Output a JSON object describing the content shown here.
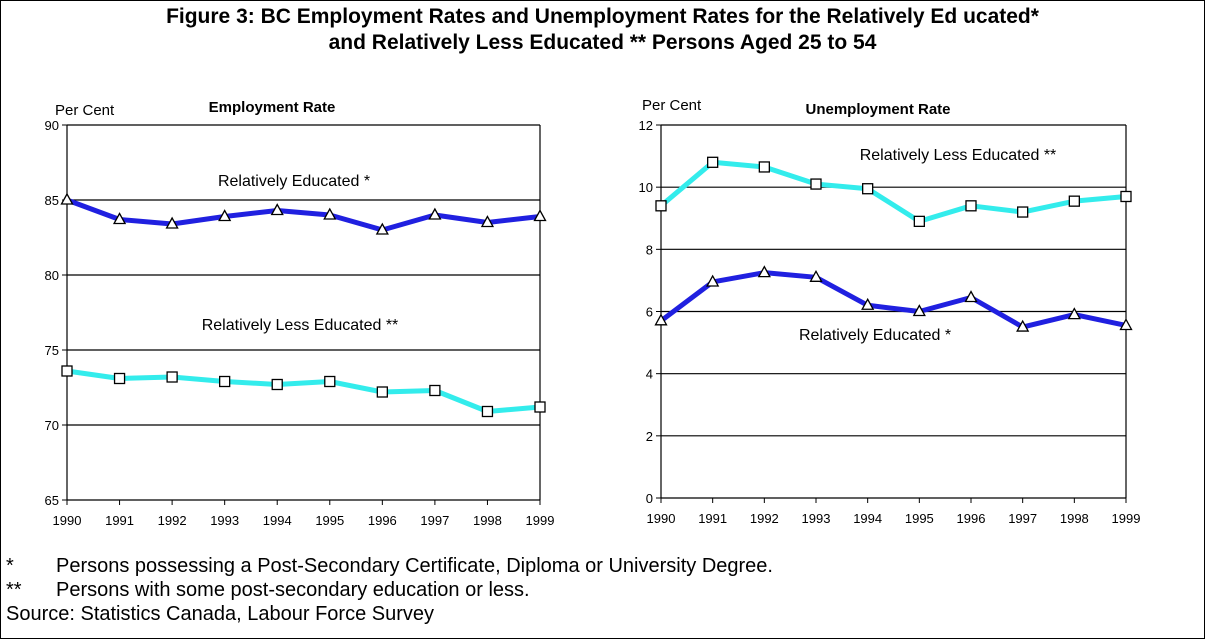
{
  "title_line1": "Figure 3: BC Employment Rates and Unemployment Rates for the Relatively Ed ucated*",
  "title_line2": "and Relatively Less Educated ** Persons Aged 25 to 54",
  "chart_data": [
    {
      "type": "line",
      "title": "Employment Rate",
      "ylabel": "Per Cent",
      "xlabel": "",
      "x": [
        "1990",
        "1991",
        "1992",
        "1993",
        "1994",
        "1995",
        "1996",
        "1997",
        "1998",
        "1999"
      ],
      "ylim": [
        65,
        90
      ],
      "yticks": [
        65,
        70,
        75,
        80,
        85,
        90
      ],
      "grid": "horizontal",
      "series": [
        {
          "name": "Relatively Educated *",
          "values": [
            85.0,
            83.7,
            83.4,
            83.9,
            84.3,
            84.0,
            83.0,
            84.0,
            83.5,
            83.9
          ],
          "color": "#2020e0",
          "marker": "triangle"
        },
        {
          "name": "Relatively Less Educated **",
          "values": [
            73.6,
            73.1,
            73.2,
            72.9,
            72.7,
            72.9,
            72.2,
            72.3,
            70.9,
            71.2
          ],
          "color": "#33ecec",
          "marker": "square"
        }
      ],
      "annotations": [
        "Relatively Educated *",
        "Relatively Less Educated **"
      ]
    },
    {
      "type": "line",
      "title": "Unemployment Rate",
      "ylabel": "Per Cent",
      "xlabel": "",
      "x": [
        "1990",
        "1991",
        "1992",
        "1993",
        "1994",
        "1995",
        "1996",
        "1997",
        "1998",
        "1999"
      ],
      "ylim": [
        0,
        12
      ],
      "yticks": [
        0,
        2,
        4,
        6,
        8,
        10,
        12
      ],
      "grid": "horizontal",
      "series": [
        {
          "name": "Relatively Less Educated **",
          "values": [
            9.4,
            10.8,
            10.65,
            10.1,
            9.95,
            8.9,
            9.4,
            9.2,
            9.55,
            9.7
          ],
          "color": "#33ecec",
          "marker": "square"
        },
        {
          "name": "Relatively Educated *",
          "values": [
            5.7,
            6.95,
            7.25,
            7.1,
            6.2,
            6.0,
            6.45,
            5.5,
            5.9,
            5.55
          ],
          "color": "#2020e0",
          "marker": "triangle"
        }
      ],
      "annotations": [
        "Relatively Less Educated **",
        "Relatively Educated *"
      ]
    }
  ],
  "footnotes": [
    {
      "mark": "*",
      "text": "Persons possessing a Post-Secondary Certificate, Diploma or University Degree."
    },
    {
      "mark": "**",
      "text": "Persons with some post-secondary education or less."
    }
  ],
  "source": "Source: Statistics Canada, Labour Force Survey"
}
